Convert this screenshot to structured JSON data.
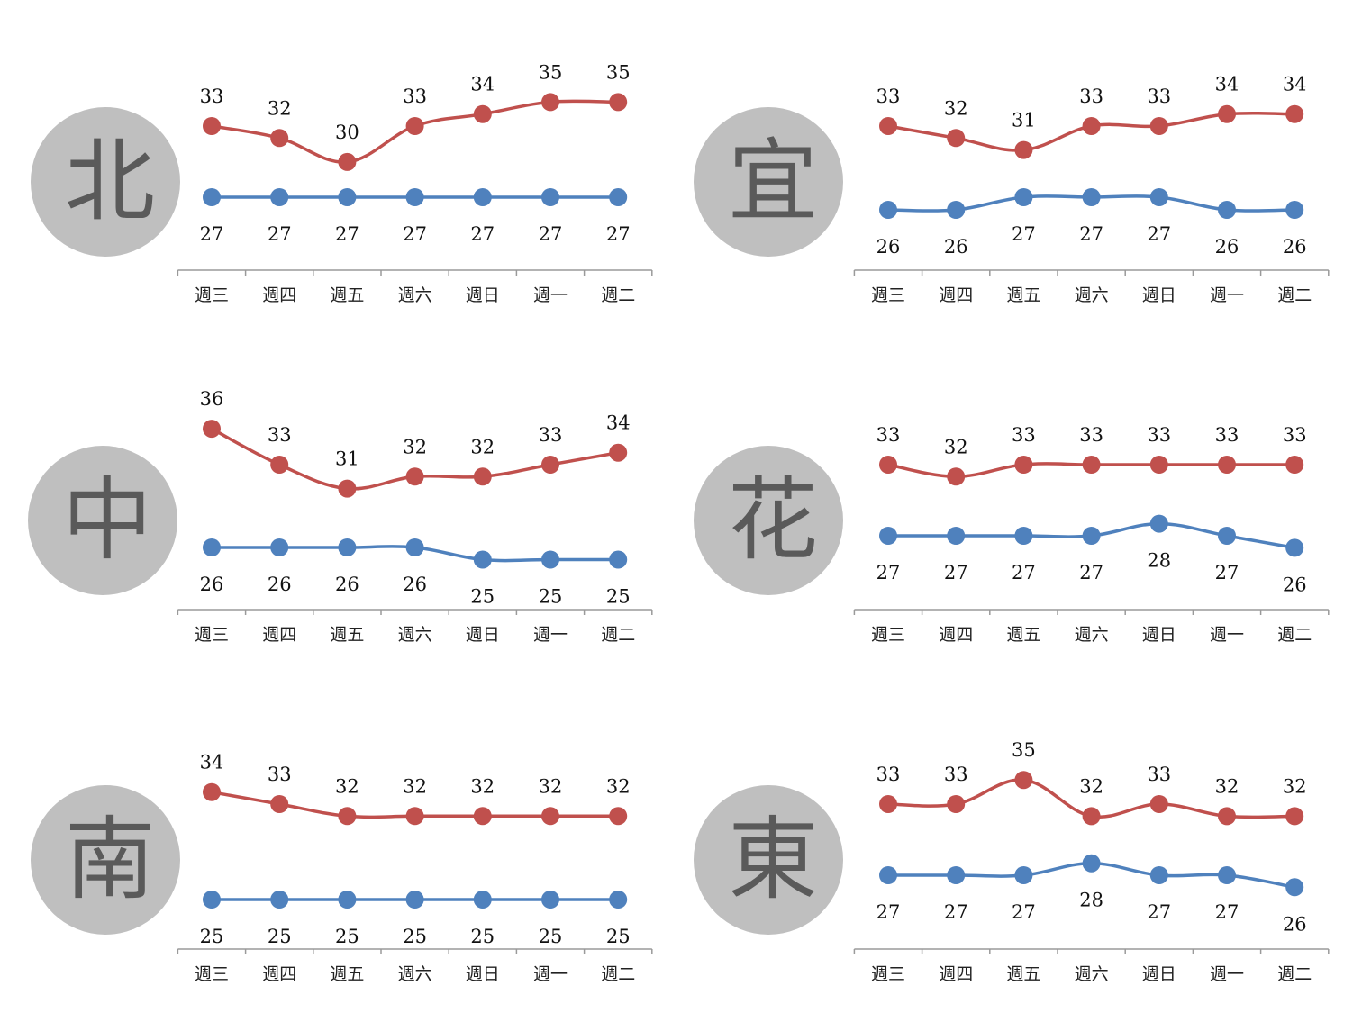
{
  "colors": {
    "high": "#c0504d",
    "low": "#4f81bd",
    "badge": "#bfbfbf",
    "badge_text": "#5a5a5a",
    "axis": "#9a9a9a"
  },
  "chart_data": [
    {
      "type": "line",
      "region": "北",
      "categories": [
        "週三",
        "週四",
        "週五",
        "週六",
        "週日",
        "週一",
        "週二"
      ],
      "series": [
        {
          "key": "high",
          "values": [
            33,
            32,
            30,
            33,
            34,
            35,
            35
          ]
        },
        {
          "key": "low",
          "values": [
            27,
            27,
            27,
            27,
            27,
            27,
            27
          ]
        }
      ]
    },
    {
      "type": "line",
      "region": "宜",
      "categories": [
        "週三",
        "週四",
        "週五",
        "週六",
        "週日",
        "週一",
        "週二"
      ],
      "series": [
        {
          "key": "high",
          "values": [
            33,
            32,
            31,
            33,
            33,
            34,
            34
          ]
        },
        {
          "key": "low",
          "values": [
            26,
            26,
            27,
            27,
            27,
            26,
            26
          ]
        }
      ]
    },
    {
      "type": "line",
      "region": "中",
      "categories": [
        "週三",
        "週四",
        "週五",
        "週六",
        "週日",
        "週一",
        "週二"
      ],
      "series": [
        {
          "key": "high",
          "values": [
            36,
            33,
            31,
            32,
            32,
            33,
            34
          ]
        },
        {
          "key": "low",
          "values": [
            26,
            26,
            26,
            26,
            25,
            25,
            25
          ]
        }
      ]
    },
    {
      "type": "line",
      "region": "花",
      "categories": [
        "週三",
        "週四",
        "週五",
        "週六",
        "週日",
        "週一",
        "週二"
      ],
      "series": [
        {
          "key": "high",
          "values": [
            33,
            32,
            33,
            33,
            33,
            33,
            33
          ]
        },
        {
          "key": "low",
          "values": [
            27,
            27,
            27,
            27,
            28,
            27,
            26
          ]
        }
      ]
    },
    {
      "type": "line",
      "region": "南",
      "categories": [
        "週三",
        "週四",
        "週五",
        "週六",
        "週日",
        "週一",
        "週二"
      ],
      "series": [
        {
          "key": "high",
          "values": [
            34,
            33,
            32,
            32,
            32,
            32,
            32
          ]
        },
        {
          "key": "low",
          "values": [
            25,
            25,
            25,
            25,
            25,
            25,
            25
          ]
        }
      ]
    },
    {
      "type": "line",
      "region": "東",
      "categories": [
        "週三",
        "週四",
        "週五",
        "週六",
        "週日",
        "週一",
        "週二"
      ],
      "series": [
        {
          "key": "high",
          "values": [
            33,
            33,
            35,
            32,
            33,
            32,
            32
          ]
        },
        {
          "key": "low",
          "values": [
            27,
            27,
            27,
            28,
            27,
            27,
            26
          ]
        }
      ]
    }
  ]
}
